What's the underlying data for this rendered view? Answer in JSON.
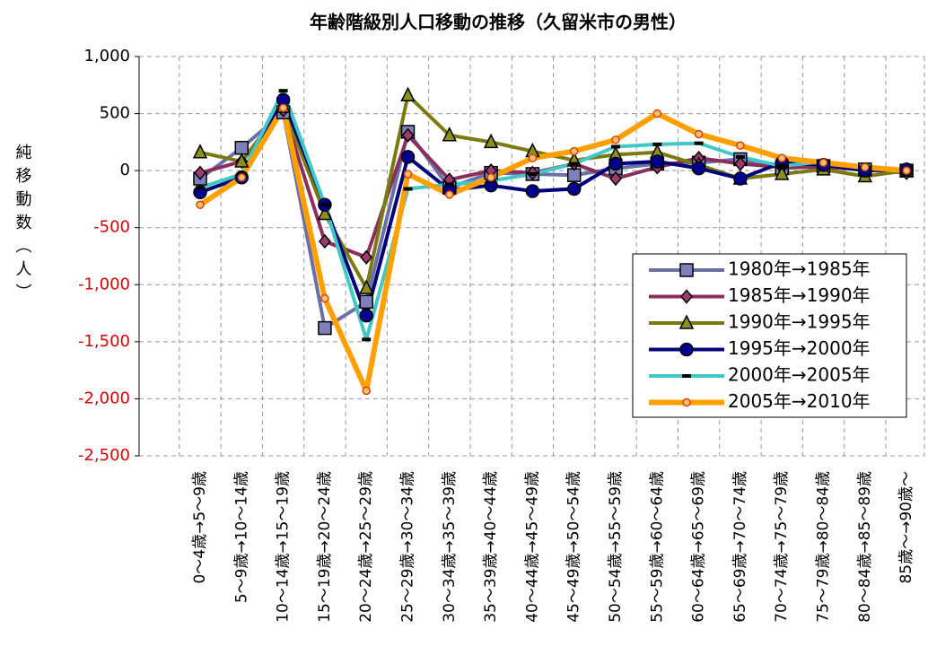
{
  "chart_data": {
    "type": "line",
    "title": "年齢階級別人口移動の推移（久留米市の男性）",
    "y_label": "純移動数（人）",
    "categories": [
      "0～4歳→5～9歳",
      "5～9歳→10～14歳",
      "10～14歳→15～19歳",
      "15～19歳→20～24歳",
      "20～24歳→25～29歳",
      "25～29歳→30～34歳",
      "30～34歳→35～39歳",
      "35～39歳→40～44歳",
      "40～44歳→45～49歳",
      "45～49歳→50～54歳",
      "50～54歳→55～59歳",
      "55～59歳→60～64歳",
      "60～64歳→65～69歳",
      "65～69歳→70～74歳",
      "70～74歳→75～79歳",
      "75～79歳→80～84歳",
      "80～84歳→85～89歳",
      "85歳～→90歳～"
    ],
    "series": [
      {
        "name": "1980年→1985年",
        "color": "#6b6fa8",
        "marker": "square",
        "marker_fill": "#7d80bb",
        "values": [
          -70,
          200,
          510,
          -1380,
          -1150,
          340,
          -150,
          -20,
          -30,
          -40,
          20,
          60,
          70,
          100,
          20,
          40,
          10,
          0
        ]
      },
      {
        "name": "1985年→1990年",
        "color": "#8b2e5e",
        "marker": "diamond",
        "marker_fill": "#9e3a6e",
        "values": [
          -20,
          80,
          530,
          -620,
          -760,
          310,
          -80,
          0,
          -20,
          60,
          -70,
          30,
          110,
          60,
          30,
          30,
          10,
          -20
        ]
      },
      {
        "name": "1990年→1995年",
        "color": "#7a7a10",
        "marker": "triangle",
        "marker_fill": "#8f8f18",
        "values": [
          160,
          80,
          560,
          -380,
          -1030,
          660,
          310,
          250,
          170,
          90,
          140,
          160,
          50,
          -70,
          -30,
          10,
          -50,
          0
        ]
      },
      {
        "name": "1995年→2000年",
        "color": "#00007a",
        "marker": "circle",
        "marker_fill": "#000090",
        "values": [
          -190,
          -60,
          620,
          -300,
          -1270,
          120,
          -170,
          -130,
          -180,
          -160,
          60,
          80,
          20,
          -70,
          70,
          50,
          0,
          10
        ]
      },
      {
        "name": "2000年→2005年",
        "color": "#40c8c8",
        "marker": "dash",
        "marker_fill": "#000000",
        "values": [
          -150,
          -30,
          700,
          -300,
          -1480,
          -160,
          -120,
          -90,
          -30,
          60,
          210,
          230,
          240,
          120,
          40,
          80,
          20,
          10
        ]
      },
      {
        "name": "2005年→2010年",
        "color": "#ffa000",
        "marker": "dot",
        "marker_fill": "#e04000",
        "values": [
          -300,
          -60,
          550,
          -1120,
          -1930,
          -30,
          -210,
          -60,
          110,
          170,
          270,
          500,
          320,
          220,
          110,
          70,
          30,
          0
        ]
      }
    ],
    "ylim": [
      -2500,
      1000
    ],
    "yticks": [
      {
        "value": 1000,
        "label": "1,000"
      },
      500,
      0,
      -500,
      {
        "value": -1000,
        "label": "-1,000"
      },
      {
        "value": -1500,
        "label": "-1,500"
      },
      {
        "value": -2000,
        "label": "-2,000"
      },
      {
        "value": -2500,
        "label": "-2,500"
      }
    ],
    "negative_tick_color": "#e00000",
    "grid": true,
    "legend": "right"
  }
}
